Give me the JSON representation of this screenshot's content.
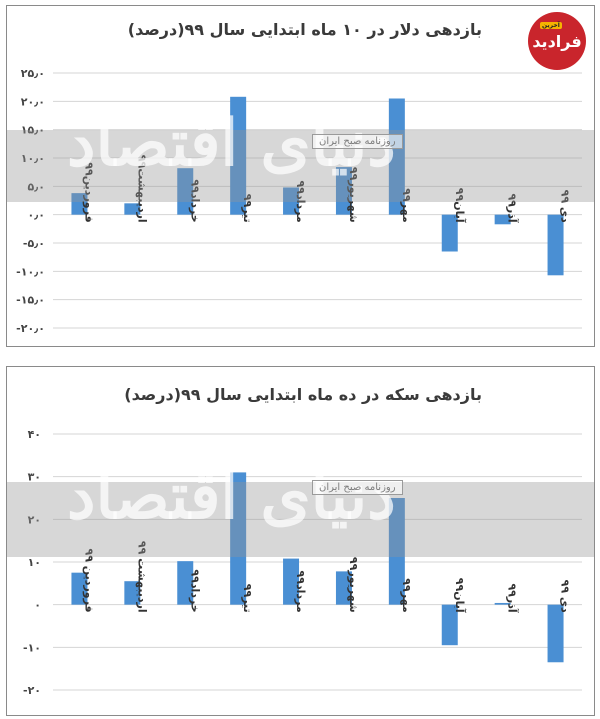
{
  "logo": {
    "text": "فرادید",
    "tag": "آخرین"
  },
  "watermark": {
    "main": "دنیای اقتصاد",
    "stamp": "روزنامه صبح ایران"
  },
  "chart_data": [
    {
      "type": "bar",
      "title": "بازدهی دلار در ۱۰ ماه ابتدایی سال ۹۹(درصد)",
      "categories": [
        "فروردین۹۹",
        "اردیبهشت۹۹",
        "خرداد۹۹",
        "تیر۹۹",
        "مرداد۹۹",
        "شهریور۹۹",
        "مهر۹۹",
        "آبان۹۹",
        "آذر۹۹",
        "دی ۹۹"
      ],
      "values": [
        3.8,
        2.0,
        8.2,
        20.8,
        4.8,
        8.4,
        20.5,
        -6.5,
        -1.7,
        -10.7
      ],
      "ylim": [
        -20,
        25
      ],
      "yticks": [
        25,
        20,
        15,
        10,
        5,
        0,
        -5,
        -10,
        -15,
        -20
      ],
      "ytick_labels": [
        "۲۵٫۰",
        "۲۰٫۰",
        "۱۵٫۰",
        "۱۰٫۰",
        "۵٫۰",
        "۰٫۰",
        "-۵٫۰",
        "-۱۰٫۰",
        "-۱۵٫۰",
        "-۲۰٫۰"
      ],
      "grid": true,
      "color": "#4a8fd3"
    },
    {
      "type": "bar",
      "title": "بازدهی سکه در ده ماه ابتدایی سال ۹۹(درصد)",
      "categories": [
        "فروردین ۹۹",
        "اردیبهشت ۹۹",
        "خرداد۹۹",
        "تیر۹۹",
        "مرداد۹۹",
        "شهریور۹۹",
        "مهر۹۹",
        "آبان۹۹",
        "آذر۹۹",
        "دی ۹۹"
      ],
      "values": [
        7.5,
        5.5,
        10.2,
        31.0,
        10.8,
        7.8,
        25.0,
        -9.5,
        0.4,
        -13.5
      ],
      "ylim": [
        -20,
        40
      ],
      "yticks": [
        40,
        30,
        20,
        10,
        0,
        -10,
        -20
      ],
      "ytick_labels": [
        "۴۰",
        "۳۰",
        "۲۰",
        "۱۰",
        "۰",
        "-۱۰",
        "-۲۰"
      ],
      "grid": true,
      "color": "#4a8fd3"
    }
  ]
}
